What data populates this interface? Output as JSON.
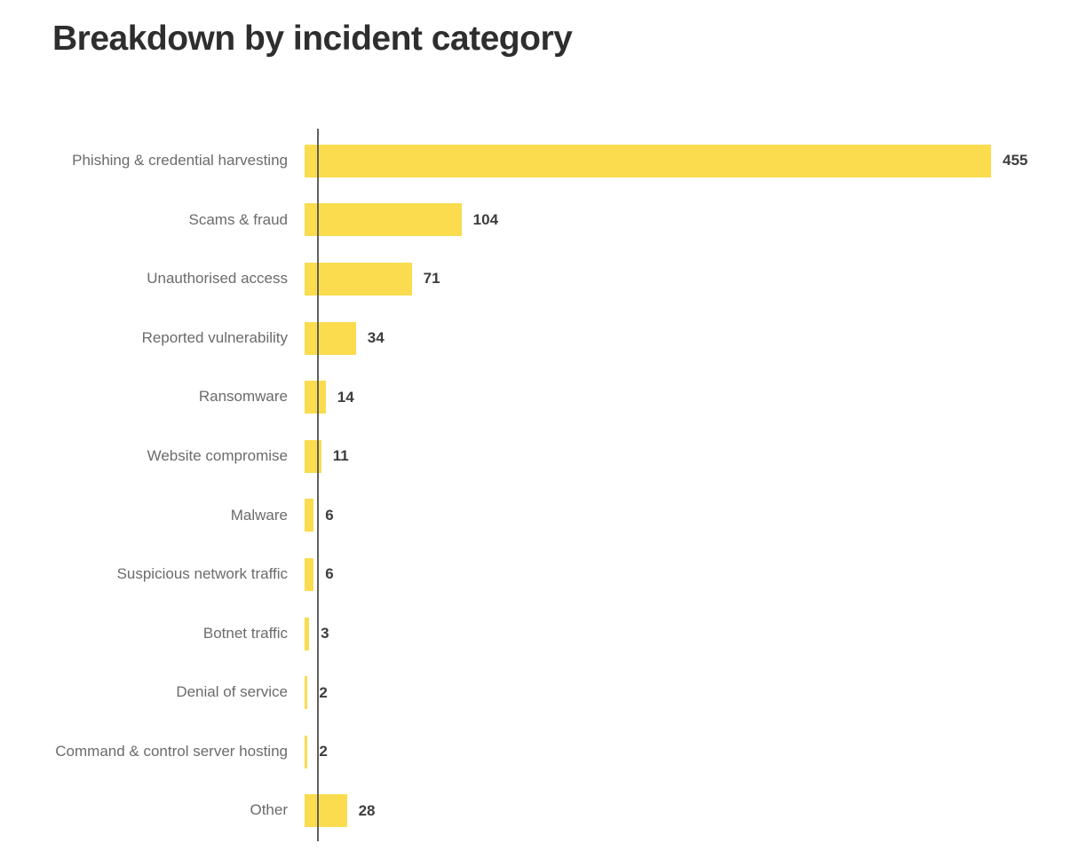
{
  "page": {
    "background": "#ffffff"
  },
  "chart_data": {
    "type": "bar",
    "orientation": "horizontal",
    "title": "Breakdown by incident category",
    "categories": [
      "Phishing & credential harvesting",
      "Scams & fraud",
      "Unauthorised access",
      "Reported vulnerability",
      "Ransomware",
      "Website compromise",
      "Malware",
      "Suspicious network traffic",
      "Botnet traffic",
      "Denial of service",
      "Command & control server hosting",
      "Other"
    ],
    "values": [
      455,
      104,
      71,
      34,
      14,
      11,
      6,
      6,
      3,
      2,
      2,
      28
    ],
    "xlabel": "",
    "ylabel": "",
    "xlim": [
      0,
      455
    ],
    "grid": false,
    "legend": false,
    "value_labels_position": "end-of-bar",
    "bar_color": "#FADC4E",
    "axis_line_color": "#5f5f5f",
    "category_label_color": "#6b6b6b",
    "value_label_color": "#3d3d3d",
    "title_color": "#2e2e2e"
  }
}
